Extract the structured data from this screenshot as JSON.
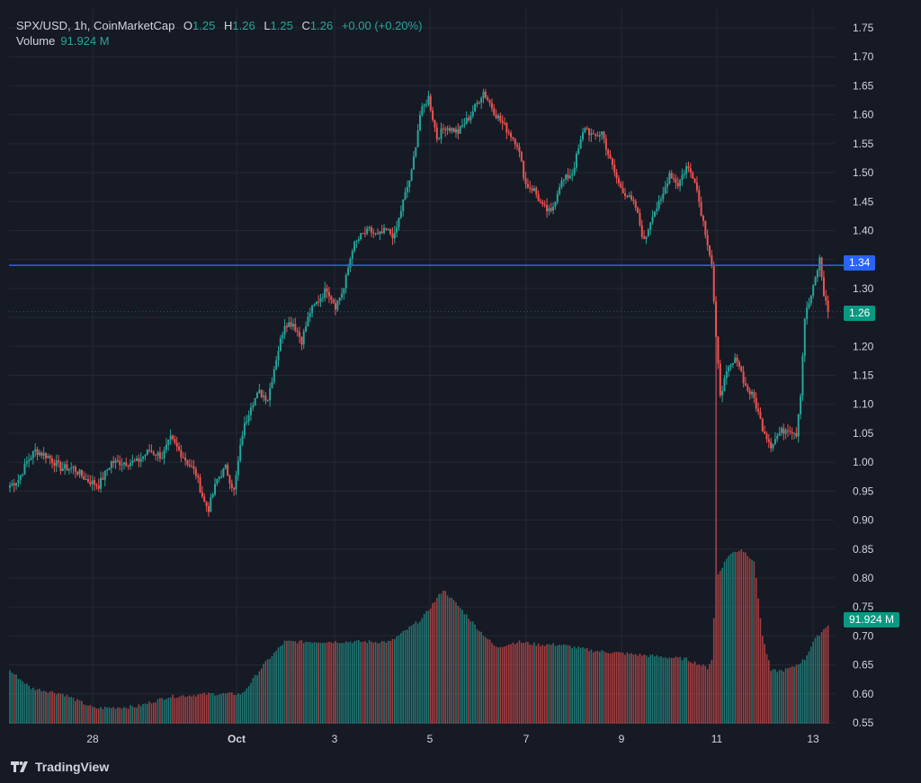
{
  "legend": {
    "symbol": "SPX/USD, 1h, CoinMarketCap",
    "o_label": "O",
    "o_value": "1.25",
    "h_label": "H",
    "h_value": "1.26",
    "l_label": "L",
    "l_value": "1.25",
    "c_label": "C",
    "c_value": "1.26",
    "change": "+0.00 (+0.20%)",
    "volume_label": "Volume",
    "volume_value": "91.924 M"
  },
  "badges": {
    "line_price": "1.34",
    "last_price": "1.26",
    "volume": "91.924 M"
  },
  "brand": "TradingView",
  "colors": {
    "background": "#161a25",
    "up": "#26a69a",
    "down": "#ef5350",
    "hline": "#2962ff",
    "grid": "#242834",
    "text": "#d1d4dc"
  },
  "chart_data": {
    "type": "candlestick",
    "title": "SPX/USD, 1h, CoinMarketCap",
    "x_ticks": [
      "28",
      "Oct",
      "3",
      "5",
      "7",
      "9",
      "11",
      "13"
    ],
    "y_ticks": [
      "1.75",
      "1.70",
      "1.65",
      "1.60",
      "1.55",
      "1.50",
      "1.45",
      "1.40",
      "1.35",
      "1.30",
      "1.25",
      "1.20",
      "1.15",
      "1.10",
      "1.05",
      "1.00",
      "0.95",
      "0.90",
      "0.85",
      "0.80",
      "0.75",
      "0.70",
      "0.65",
      "0.60",
      "0.55"
    ],
    "ylim": [
      0.55,
      1.75
    ],
    "horizontal_line": 1.34,
    "last_price": 1.26,
    "price_anchors": [
      [
        0,
        0.96
      ],
      [
        4,
        0.97
      ],
      [
        8,
        1.0
      ],
      [
        12,
        1.02
      ],
      [
        18,
        1.01
      ],
      [
        24,
        0.99
      ],
      [
        30,
        0.99
      ],
      [
        36,
        0.97
      ],
      [
        42,
        0.96
      ],
      [
        48,
        1.0
      ],
      [
        54,
        1.0
      ],
      [
        60,
        1.0
      ],
      [
        66,
        1.02
      ],
      [
        72,
        1.01
      ],
      [
        76,
        1.04
      ],
      [
        80,
        1.02
      ],
      [
        84,
        1.0
      ],
      [
        88,
        0.98
      ],
      [
        92,
        0.93
      ],
      [
        94,
        0.92
      ],
      [
        98,
        0.97
      ],
      [
        102,
        0.99
      ],
      [
        106,
        0.95
      ],
      [
        110,
        1.05
      ],
      [
        114,
        1.1
      ],
      [
        118,
        1.12
      ],
      [
        122,
        1.11
      ],
      [
        126,
        1.18
      ],
      [
        130,
        1.24
      ],
      [
        134,
        1.24
      ],
      [
        138,
        1.21
      ],
      [
        142,
        1.26
      ],
      [
        146,
        1.28
      ],
      [
        150,
        1.3
      ],
      [
        154,
        1.27
      ],
      [
        158,
        1.3
      ],
      [
        162,
        1.37
      ],
      [
        166,
        1.39
      ],
      [
        170,
        1.4
      ],
      [
        174,
        1.39
      ],
      [
        178,
        1.4
      ],
      [
        182,
        1.39
      ],
      [
        186,
        1.45
      ],
      [
        190,
        1.5
      ],
      [
        194,
        1.6
      ],
      [
        198,
        1.63
      ],
      [
        202,
        1.56
      ],
      [
        206,
        1.58
      ],
      [
        212,
        1.57
      ],
      [
        218,
        1.6
      ],
      [
        224,
        1.64
      ],
      [
        230,
        1.6
      ],
      [
        236,
        1.57
      ],
      [
        240,
        1.55
      ],
      [
        244,
        1.48
      ],
      [
        248,
        1.47
      ],
      [
        252,
        1.44
      ],
      [
        256,
        1.43
      ],
      [
        260,
        1.48
      ],
      [
        266,
        1.5
      ],
      [
        272,
        1.58
      ],
      [
        276,
        1.56
      ],
      [
        280,
        1.57
      ],
      [
        284,
        1.52
      ],
      [
        288,
        1.48
      ],
      [
        292,
        1.46
      ],
      [
        296,
        1.44
      ],
      [
        300,
        1.38
      ],
      [
        304,
        1.43
      ],
      [
        308,
        1.45
      ],
      [
        312,
        1.5
      ],
      [
        316,
        1.48
      ],
      [
        320,
        1.51
      ],
      [
        324,
        1.49
      ],
      [
        326,
        1.45
      ],
      [
        330,
        1.38
      ],
      [
        332,
        1.34
      ],
      [
        334,
        1.21
      ],
      [
        336,
        1.12
      ],
      [
        340,
        1.16
      ],
      [
        344,
        1.18
      ],
      [
        348,
        1.13
      ],
      [
        352,
        1.11
      ],
      [
        356,
        1.06
      ],
      [
        360,
        1.03
      ],
      [
        364,
        1.05
      ],
      [
        368,
        1.06
      ],
      [
        372,
        1.05
      ],
      [
        374,
        1.12
      ],
      [
        376,
        1.25
      ],
      [
        380,
        1.3
      ],
      [
        383,
        1.35
      ],
      [
        385,
        1.29
      ],
      [
        387,
        1.26
      ]
    ],
    "volume_anchors": [
      [
        0,
        0.64
      ],
      [
        10,
        0.61
      ],
      [
        25,
        0.6
      ],
      [
        40,
        0.575
      ],
      [
        60,
        0.578
      ],
      [
        75,
        0.595
      ],
      [
        95,
        0.6
      ],
      [
        110,
        0.6
      ],
      [
        120,
        0.65
      ],
      [
        130,
        0.69
      ],
      [
        145,
        0.69
      ],
      [
        165,
        0.69
      ],
      [
        180,
        0.69
      ],
      [
        195,
        0.73
      ],
      [
        205,
        0.78
      ],
      [
        215,
        0.74
      ],
      [
        222,
        0.71
      ],
      [
        230,
        0.68
      ],
      [
        240,
        0.69
      ],
      [
        250,
        0.685
      ],
      [
        260,
        0.685
      ],
      [
        275,
        0.675
      ],
      [
        290,
        0.67
      ],
      [
        305,
        0.665
      ],
      [
        320,
        0.66
      ],
      [
        330,
        0.645
      ],
      [
        332,
        0.66
      ],
      [
        334,
        0.8
      ],
      [
        340,
        0.84
      ],
      [
        346,
        0.85
      ],
      [
        352,
        0.83
      ],
      [
        356,
        0.7
      ],
      [
        360,
        0.64
      ],
      [
        365,
        0.64
      ],
      [
        370,
        0.645
      ],
      [
        376,
        0.66
      ],
      [
        380,
        0.69
      ],
      [
        387,
        0.72
      ]
    ]
  }
}
